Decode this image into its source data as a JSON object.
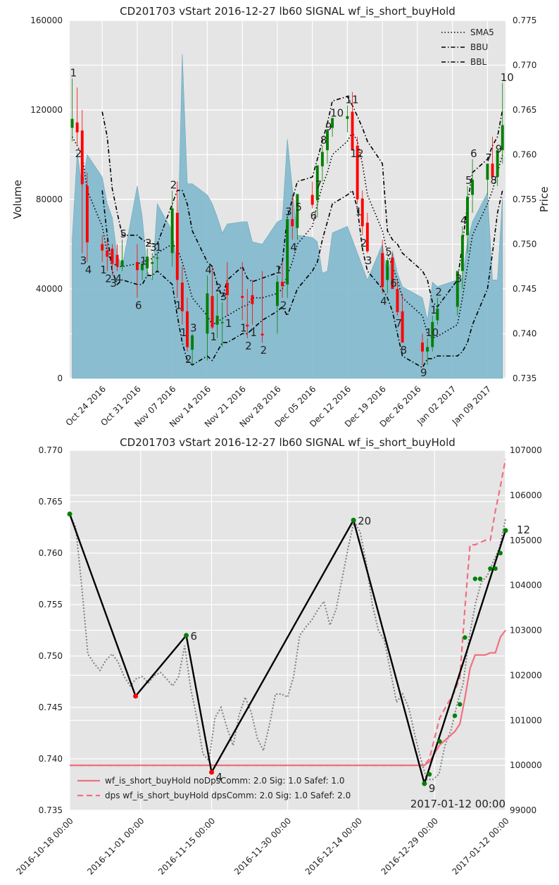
{
  "colors": {
    "panel_bg": "#e5e5e5",
    "grid": "#ffffff",
    "volume_fill": "#7fb8cc",
    "volume_edge": "#6aa6bc",
    "candle_up": "#008000",
    "candle_down": "#ff0000",
    "sma": "#000000",
    "bb": "#000000",
    "equity": "#f07080",
    "price_dotted": "#808080",
    "zigzag": "#000000",
    "marker_green": "#008000",
    "marker_red": "#ff0000",
    "text": "#222222"
  },
  "top": {
    "title": "CD201703 vStart 2016-12-27 lb60 SIGNAL wf_is_short_buyHold",
    "ylabel_left": "Volume",
    "ylabel_right": "Price",
    "left_ticks": [
      "0",
      "40000",
      "80000",
      "120000",
      "160000"
    ],
    "right_ticks": [
      "0.735",
      "0.740",
      "0.745",
      "0.750",
      "0.755",
      "0.760",
      "0.765",
      "0.770",
      "0.775"
    ],
    "x_ticks": [
      "Oct 24 2016",
      "Oct 31 2016",
      "Nov 07 2016",
      "Nov 14 2016",
      "Nov 21 2016",
      "Nov 28 2016",
      "Dec 05 2016",
      "Dec 12 2016",
      "Dec 19 2016",
      "Dec 26 2016",
      "Jan 02 2017",
      "Jan 09 2017"
    ],
    "legend": [
      "SMA5",
      "BBU",
      "BBL"
    ]
  },
  "bottom": {
    "title": "CD201703 vStart 2016-12-27 lb60 SIGNAL wf_is_short_buyHold",
    "left_ticks": [
      "0.735",
      "0.740",
      "0.745",
      "0.750",
      "0.755",
      "0.760",
      "0.765",
      "0.770"
    ],
    "right_ticks": [
      "99000",
      "100000",
      "101000",
      "102000",
      "103000",
      "104000",
      "105000",
      "106000",
      "107000"
    ],
    "x_ticks": [
      "2016-10-18 00:00",
      "2016-11-01 00:00",
      "2016-11-15 00:00",
      "2016-11-30 00:00",
      "2016-12-14 00:00",
      "2016-12-29 00:00",
      "2017-01-12 00:00"
    ],
    "legend": [
      "wf_is_short_buyHold noDpsComm: 2.0 Sig: 1.0 Safef: 1.0",
      "dps wf_is_short_buyHold dpsComm: 2.0 Sig: 1.0 Safef: 2.0"
    ],
    "corner_date": "2017-01-12 00:00",
    "pivot_labels": [
      "6",
      "4",
      "20",
      "9",
      "12"
    ]
  },
  "chart_data": [
    {
      "type": "candlestick",
      "title": "CD201703 vStart 2016-12-27 lb60 SIGNAL wf_is_short_buyHold",
      "ylabel_left": "Volume",
      "ylabel_right": "Price",
      "ylim_left": [
        0,
        160000
      ],
      "ylim_right": [
        0.735,
        0.775
      ],
      "grid": true,
      "legend_position": "top-right",
      "legend": [
        "SMA5",
        "BBU",
        "BBL"
      ],
      "dates": [
        "2016-10-18",
        "2016-10-19",
        "2016-10-20",
        "2016-10-21",
        "2016-10-24",
        "2016-10-25",
        "2016-10-26",
        "2016-10-27",
        "2016-10-28",
        "2016-10-31",
        "2016-11-01",
        "2016-11-02",
        "2016-11-03",
        "2016-11-04",
        "2016-11-07",
        "2016-11-08",
        "2016-11-09",
        "2016-11-10",
        "2016-11-11",
        "2016-11-14",
        "2016-11-15",
        "2016-11-16",
        "2016-11-17",
        "2016-11-18",
        "2016-11-21",
        "2016-11-22",
        "2016-11-23",
        "2016-11-25",
        "2016-11-28",
        "2016-11-29",
        "2016-11-30",
        "2016-12-01",
        "2016-12-02",
        "2016-12-05",
        "2016-12-06",
        "2016-12-07",
        "2016-12-08",
        "2016-12-09",
        "2016-12-12",
        "2016-12-13",
        "2016-12-14",
        "2016-12-15",
        "2016-12-16",
        "2016-12-19",
        "2016-12-20",
        "2016-12-21",
        "2016-12-22",
        "2016-12-23",
        "2016-12-27",
        "2016-12-28",
        "2016-12-29",
        "2016-12-30",
        "2017-01-03",
        "2017-01-04",
        "2017-01-05",
        "2017-01-06",
        "2017-01-09",
        "2017-01-10",
        "2017-01-11",
        "2017-01-12"
      ],
      "open": [
        0.763,
        0.7636,
        0.7627,
        0.7565,
        0.75,
        0.7493,
        0.7495,
        0.7488,
        0.7475,
        0.748,
        0.7471,
        0.7473,
        0.7478,
        0.7484,
        0.749,
        0.7535,
        0.7457,
        0.7425,
        0.7382,
        0.74,
        0.7442,
        0.741,
        0.7412,
        0.7457,
        0.7442,
        0.741,
        0.7443,
        0.74,
        0.7431,
        0.7458,
        0.7455,
        0.7528,
        0.7518,
        0.7555,
        0.7549,
        0.7587,
        0.7605,
        0.763,
        0.764,
        0.7648,
        0.761,
        0.7551,
        0.7524,
        0.749,
        0.746,
        0.7485,
        0.745,
        0.7425,
        0.739,
        0.738,
        0.7385,
        0.7415,
        0.743,
        0.747,
        0.751,
        0.7555,
        0.7572,
        0.759,
        0.7575,
        0.7605
      ],
      "high": [
        0.7685,
        0.7675,
        0.765,
        0.758,
        0.751,
        0.7505,
        0.75,
        0.75,
        0.7505,
        0.75,
        0.7475,
        0.7495,
        0.749,
        0.749,
        0.756,
        0.757,
        0.7475,
        0.744,
        0.74,
        0.7465,
        0.7475,
        0.7445,
        0.7435,
        0.748,
        0.748,
        0.745,
        0.746,
        0.747,
        0.7465,
        0.748,
        0.753,
        0.7555,
        0.7535,
        0.757,
        0.756,
        0.761,
        0.7625,
        0.764,
        0.7655,
        0.767,
        0.762,
        0.756,
        0.7535,
        0.7505,
        0.7485,
        0.749,
        0.746,
        0.7445,
        0.74,
        0.7395,
        0.742,
        0.744,
        0.7455,
        0.752,
        0.7565,
        0.7595,
        0.759,
        0.762,
        0.76,
        0.768
      ],
      "low": [
        0.7615,
        0.761,
        0.749,
        0.748,
        0.748,
        0.747,
        0.7465,
        0.747,
        0.747,
        0.744,
        0.746,
        0.7465,
        0.746,
        0.747,
        0.7475,
        0.744,
        0.741,
        0.738,
        0.7365,
        0.737,
        0.7405,
        0.7395,
        0.7385,
        0.742,
        0.7415,
        0.7395,
        0.741,
        0.739,
        0.74,
        0.744,
        0.744,
        0.7505,
        0.7505,
        0.754,
        0.753,
        0.757,
        0.759,
        0.762,
        0.7625,
        0.761,
        0.7545,
        0.751,
        0.749,
        0.7445,
        0.7445,
        0.7465,
        0.742,
        0.739,
        0.7365,
        0.7365,
        0.738,
        0.741,
        0.742,
        0.745,
        0.749,
        0.7535,
        0.7555,
        0.758,
        0.7565,
        0.759
      ],
      "close": [
        0.764,
        0.7625,
        0.7567,
        0.7502,
        0.7493,
        0.7486,
        0.7478,
        0.7475,
        0.7482,
        0.7471,
        0.7478,
        0.7486,
        0.748,
        0.7485,
        0.754,
        0.746,
        0.7425,
        0.7385,
        0.7398,
        0.7445,
        0.7407,
        0.742,
        0.7413,
        0.7443,
        0.744,
        0.7408,
        0.7433,
        0.7398,
        0.7458,
        0.7453,
        0.7528,
        0.752,
        0.7556,
        0.7544,
        0.7588,
        0.7603,
        0.7627,
        0.7641,
        0.7643,
        0.7605,
        0.755,
        0.752,
        0.7492,
        0.7452,
        0.7482,
        0.745,
        0.7424,
        0.739,
        0.738,
        0.7385,
        0.7413,
        0.7428,
        0.747,
        0.751,
        0.7553,
        0.7572,
        0.759,
        0.7575,
        0.7605,
        0.7633
      ],
      "volume": [
        62000,
        101000,
        85000,
        100000,
        90000,
        78000,
        72000,
        55000,
        50000,
        86000,
        72000,
        48000,
        44000,
        78000,
        66000,
        50000,
        145000,
        87000,
        87000,
        82000,
        78000,
        72000,
        65000,
        69000,
        70000,
        70000,
        61000,
        60000,
        70000,
        71000,
        107000,
        85000,
        64000,
        63000,
        61000,
        47000,
        48000,
        65000,
        68000,
        62000,
        56000,
        50000,
        44000,
        60000,
        45000,
        57000,
        47000,
        41000,
        36000,
        26000,
        43000,
        41000,
        44000,
        45000,
        61000,
        70000,
        83000,
        44000,
        44000,
        81000
      ],
      "sma5": [
        0.762,
        0.761,
        0.76,
        0.756,
        0.752,
        0.749,
        0.748,
        0.7475,
        0.7475,
        0.7478,
        0.748,
        0.7482,
        0.7484,
        0.749,
        0.75,
        0.7495,
        0.748,
        0.746,
        0.744,
        0.742,
        0.741,
        0.7413,
        0.7417,
        0.742,
        0.743,
        0.7432,
        0.744,
        0.744,
        0.7445,
        0.745,
        0.7465,
        0.748,
        0.75,
        0.752,
        0.7545,
        0.7565,
        0.758,
        0.76,
        0.7615,
        0.7625,
        0.7615,
        0.759,
        0.7555,
        0.7515,
        0.749,
        0.7475,
        0.746,
        0.744,
        0.742,
        0.74,
        0.7395,
        0.7397,
        0.741,
        0.744,
        0.7475,
        0.751,
        0.7545,
        0.756,
        0.758,
        0.76
      ],
      "bbu": [
        null,
        null,
        null,
        null,
        0.7648,
        0.762,
        0.7562,
        0.7535,
        0.751,
        0.751,
        0.7505,
        0.7502,
        0.75,
        0.75,
        0.7545,
        0.756,
        0.756,
        0.7545,
        0.7515,
        0.748,
        0.7475,
        0.7455,
        0.744,
        0.746,
        0.7475,
        0.7462,
        0.7458,
        0.7462,
        0.7468,
        0.748,
        0.753,
        0.755,
        0.757,
        0.7575,
        0.7595,
        0.7615,
        0.7635,
        0.766,
        0.7665,
        0.7655,
        0.7643,
        0.763,
        0.7615,
        0.759,
        0.7515,
        0.7505,
        0.75,
        0.749,
        0.747,
        0.746,
        0.7435,
        0.743,
        0.746,
        0.75,
        0.7545,
        0.758,
        0.7595,
        0.761,
        0.762,
        0.765
      ],
      "bbl": [
        null,
        null,
        null,
        null,
        0.756,
        0.751,
        0.747,
        0.7455,
        0.746,
        0.7455,
        0.7455,
        0.7465,
        0.7465,
        0.747,
        0.7455,
        0.742,
        0.739,
        0.737,
        0.7365,
        0.7375,
        0.737,
        0.738,
        0.739,
        0.739,
        0.74,
        0.74,
        0.7405,
        0.7415,
        0.7425,
        0.743,
        0.742,
        0.7435,
        0.745,
        0.747,
        0.748,
        0.7505,
        0.7525,
        0.7545,
        0.7555,
        0.756,
        0.754,
        0.7495,
        0.747,
        0.745,
        0.744,
        0.7425,
        0.74,
        0.7375,
        0.7362,
        0.7372,
        0.7372,
        0.7375,
        0.7375,
        0.738,
        0.739,
        0.741,
        0.745,
        0.749,
        0.7535,
        0.756
      ],
      "count_labels": [
        "1",
        "2",
        "3",
        "4",
        "1",
        "2",
        "3",
        "4",
        "5",
        "6",
        "1",
        "2",
        "3",
        "1",
        "2",
        "1",
        "1",
        "2",
        "3",
        "4",
        "1",
        "2",
        "3",
        "1",
        "1",
        "2",
        "1",
        "2",
        "1",
        "2",
        "3",
        "4",
        "5",
        "6",
        "7",
        "8",
        "9",
        "10",
        "11",
        "12",
        "1",
        "2",
        "3",
        "4",
        "5",
        "6",
        "7",
        "8",
        "9",
        "10",
        "1",
        "2",
        "3",
        "4",
        "5",
        "6",
        "7",
        "8",
        "9",
        "10"
      ]
    },
    {
      "type": "line",
      "title": "CD201703 vStart 2016-12-27 lb60 SIGNAL wf_is_short_buyHold",
      "ylim_left": [
        0.735,
        0.77
      ],
      "ylim_right": [
        99000,
        107000
      ],
      "grid": true,
      "legend_position": "bottom-left",
      "x_ticks": [
        "2016-10-18 00:00",
        "2016-11-01 00:00",
        "2016-11-15 00:00",
        "2016-11-30 00:00",
        "2016-12-14 00:00",
        "2016-12-29 00:00",
        "2017-01-12 00:00"
      ],
      "close": [
        0.7638,
        0.7625,
        0.7567,
        0.7502,
        0.7493,
        0.7486,
        0.7496,
        0.7502,
        0.7494,
        0.748,
        0.7471,
        0.7478,
        0.748,
        0.7474,
        0.7481,
        0.7484,
        0.7478,
        0.7471,
        0.748,
        0.751,
        0.7468,
        0.744,
        0.7405,
        0.7398,
        0.744,
        0.745,
        0.743,
        0.7413,
        0.7443,
        0.746,
        0.7445,
        0.742,
        0.7408,
        0.7433,
        0.7463,
        0.7463,
        0.746,
        0.748,
        0.752,
        0.7528,
        0.7535,
        0.7545,
        0.7553,
        0.753,
        0.7545,
        0.7575,
        0.7605,
        0.7632,
        0.762,
        0.759,
        0.755,
        0.7525,
        0.7515,
        0.7485,
        0.7455,
        0.7463,
        0.745,
        0.7424,
        0.74,
        0.738,
        0.738,
        0.7385,
        0.7413,
        0.7428,
        0.7453,
        0.7473,
        0.7518,
        0.755,
        0.7572,
        0.7578,
        0.7592,
        0.7605,
        0.7633
      ],
      "zigzag": [
        {
          "date": "2016-10-18",
          "value": 0.7638
        },
        {
          "date": "2016-10-31",
          "value": 0.7461
        },
        {
          "date": "2016-11-10",
          "value": 0.752,
          "label": "6"
        },
        {
          "date": "2016-11-15",
          "value": 0.7387,
          "label": "4"
        },
        {
          "date": "2016-12-13",
          "value": 0.7632,
          "label": "20"
        },
        {
          "date": "2016-12-27",
          "value": 0.7376,
          "label": "9"
        },
        {
          "date": "2017-01-12",
          "value": 0.7622,
          "label": "12"
        }
      ],
      "signal_markers": [
        {
          "date": "2016-12-28",
          "value": 0.7385
        },
        {
          "date": "2016-12-30",
          "value": 0.7417
        },
        {
          "date": "2017-01-02",
          "value": 0.7442
        },
        {
          "date": "2017-01-03",
          "value": 0.7453
        },
        {
          "date": "2017-01-04",
          "value": 0.7518
        },
        {
          "date": "2017-01-06",
          "value": 0.7575
        },
        {
          "date": "2017-01-07",
          "value": 0.7575
        },
        {
          "date": "2017-01-09",
          "value": 0.7585
        },
        {
          "date": "2017-01-10",
          "value": 0.7585
        },
        {
          "date": "2017-01-11",
          "value": 0.76
        },
        {
          "date": "2017-01-12",
          "value": 0.7622
        }
      ],
      "series": [
        {
          "name": "wf_is_short_buyHold noDpsComm: 2.0 Sig: 1.0 Safef: 1.0",
          "style": "solid",
          "x": [
            "2016-10-18",
            "2016-12-27",
            "2016-12-28",
            "2016-12-30",
            "2017-01-02",
            "2017-01-03",
            "2017-01-04",
            "2017-01-05",
            "2017-01-06",
            "2017-01-08",
            "2017-01-09",
            "2017-01-10",
            "2017-01-11",
            "2017-01-12"
          ],
          "values": [
            100000,
            100000,
            100080,
            100450,
            100750,
            100920,
            101500,
            102150,
            102450,
            102450,
            102500,
            102500,
            102850,
            103000
          ]
        },
        {
          "name": "dps wf_is_short_buyHold dpsComm: 2.0 Sig: 1.0 Safef: 2.0",
          "style": "dashed",
          "x": [
            "2016-10-18",
            "2016-12-27",
            "2016-12-28",
            "2016-12-30",
            "2017-01-02",
            "2017-01-03",
            "2017-01-04",
            "2017-01-05",
            "2017-01-06",
            "2017-01-08",
            "2017-01-09",
            "2017-01-10",
            "2017-01-11",
            "2017-01-12"
          ],
          "values": [
            100000,
            100000,
            100150,
            101050,
            101650,
            101950,
            103500,
            104900,
            104900,
            105000,
            105000,
            105650,
            106200,
            106800
          ]
        }
      ]
    }
  ]
}
